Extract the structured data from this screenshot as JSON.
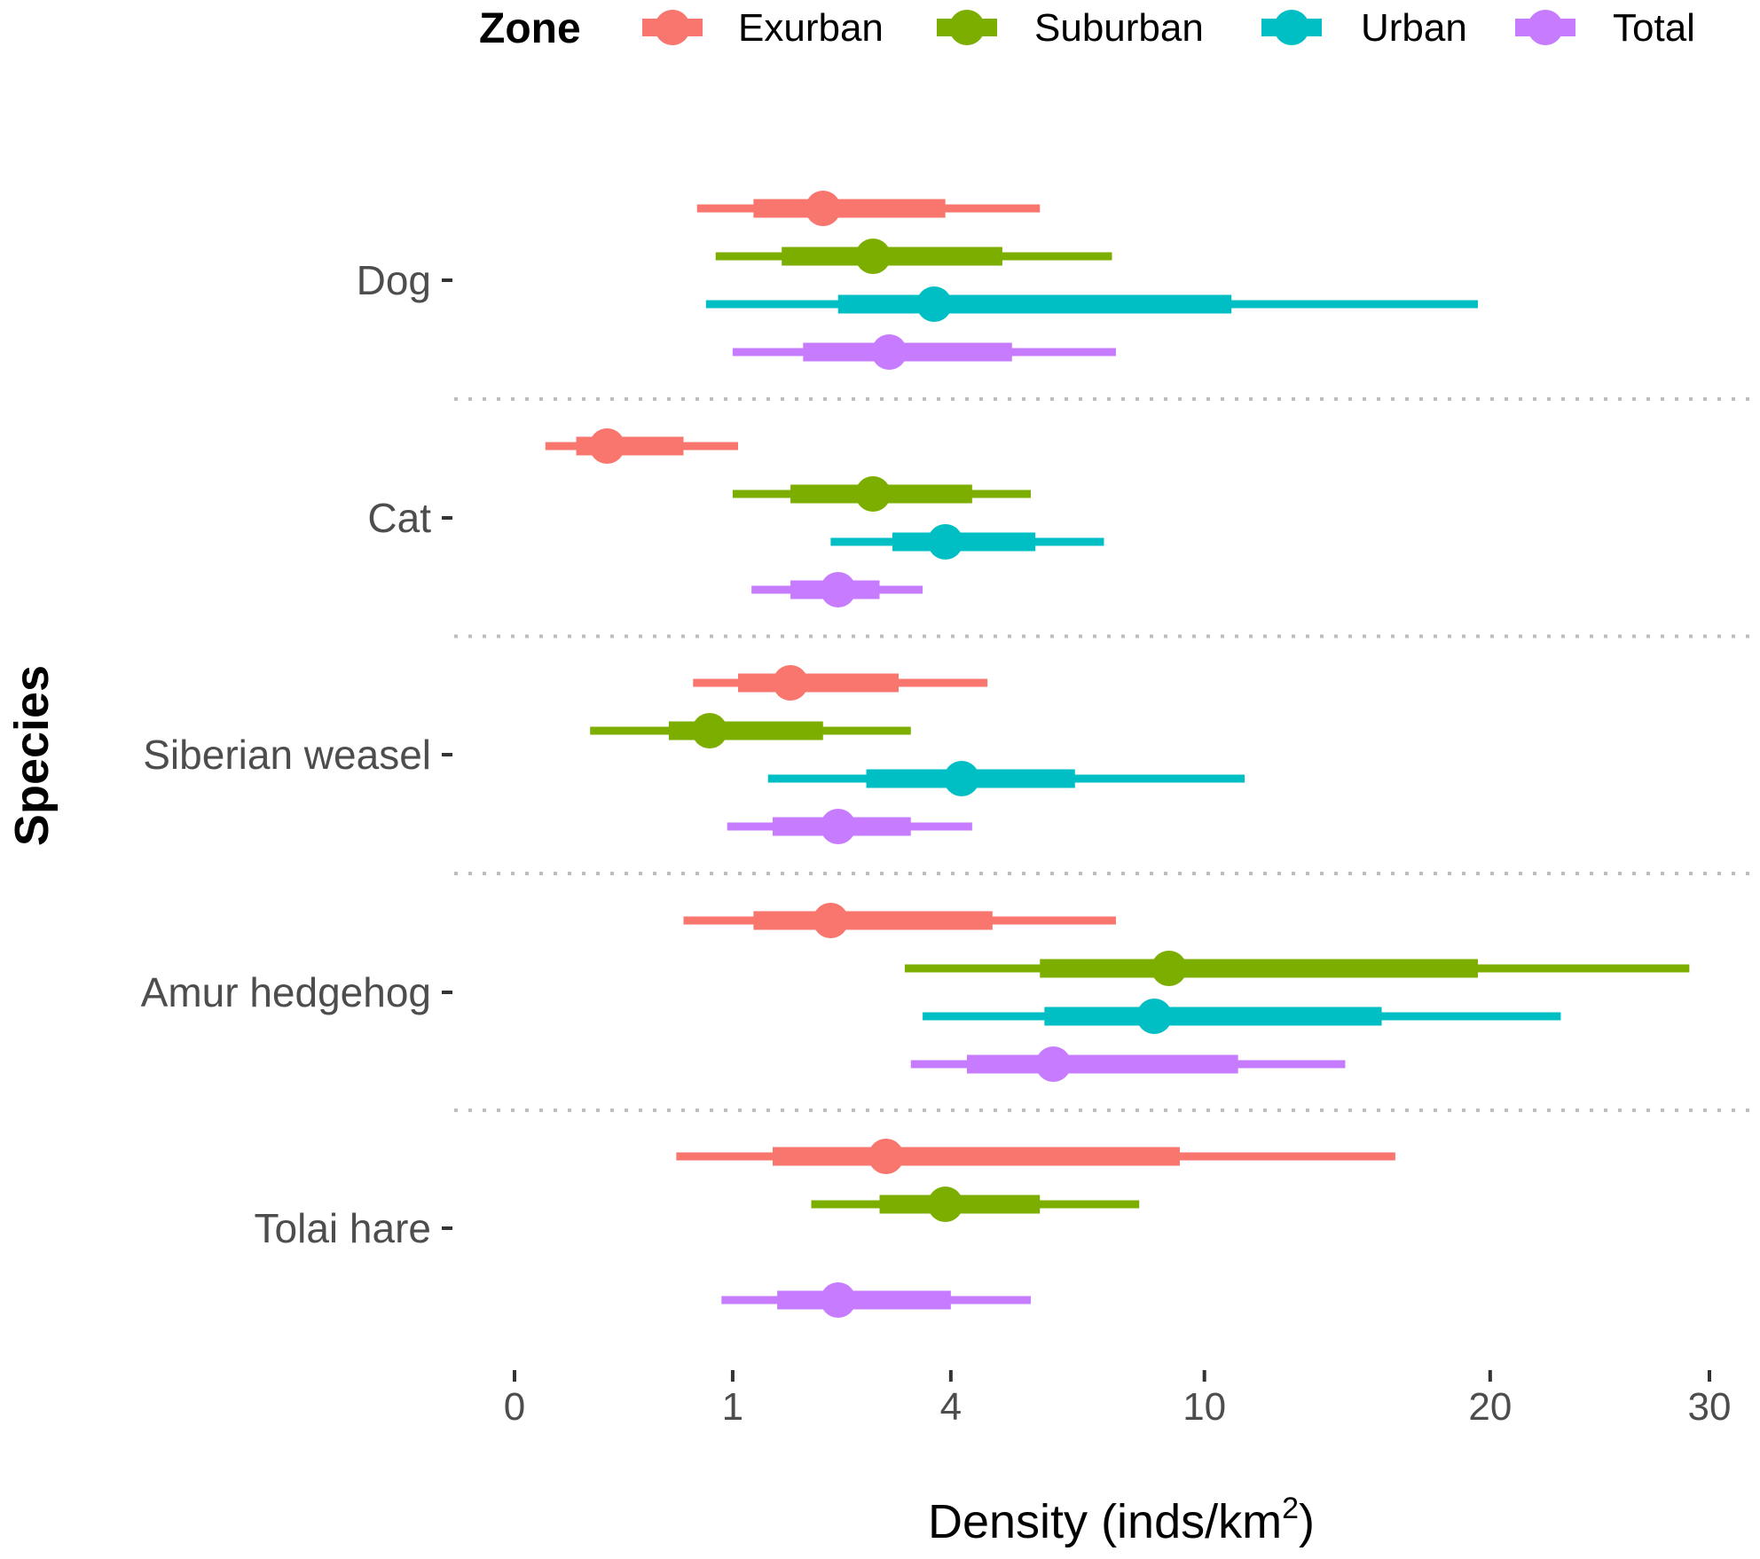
{
  "chart_data": {
    "type": "interval",
    "xlabel": "Density (inds/km",
    "xlabel_sup": "2",
    "xlabel_close": ")",
    "ylabel": "Species",
    "x_scale": "sqrt",
    "xlim": [
      0,
      30
    ],
    "x_ticks": [
      0,
      1,
      4,
      10,
      20,
      30
    ],
    "x_tick_labels": [
      "0",
      "1",
      "4",
      "10",
      "20",
      "30"
    ],
    "grid": "dotted separators between species",
    "legend": {
      "title": "Zone",
      "position": "top",
      "entries": [
        {
          "name": "Exurban",
          "color": "#F8766D"
        },
        {
          "name": "Suburban",
          "color": "#7CAE00"
        },
        {
          "name": "Urban",
          "color": "#00BFC4"
        },
        {
          "name": "Total",
          "color": "#C77CFF"
        }
      ]
    },
    "categories": [
      "Dog",
      "Cat",
      "Siberian weasel",
      "Amur hedgehog",
      "Tolai hare"
    ],
    "series": [
      {
        "name": "Exurban",
        "color": "#F8766D",
        "points": [
          {
            "category": "Dog",
            "estimate": 2.0,
            "inner": [
              1.2,
              3.9
            ],
            "outer": [
              0.7,
              5.8
            ]
          },
          {
            "category": "Cat",
            "estimate": 0.18,
            "inner": [
              0.08,
              0.6
            ],
            "outer": [
              0.02,
              1.05
            ]
          },
          {
            "category": "Siberian weasel",
            "estimate": 1.6,
            "inner": [
              1.05,
              3.1
            ],
            "outer": [
              0.67,
              4.7
            ]
          },
          {
            "category": "Amur hedgehog",
            "estimate": 2.1,
            "inner": [
              1.2,
              4.8
            ],
            "outer": [
              0.6,
              7.6
            ]
          },
          {
            "category": "Tolai hare",
            "estimate": 2.9,
            "inner": [
              1.4,
              9.3
            ],
            "outer": [
              0.55,
              16.3
            ]
          }
        ]
      },
      {
        "name": "Suburban",
        "color": "#7CAE00",
        "points": [
          {
            "category": "Dog",
            "estimate": 2.7,
            "inner": [
              1.5,
              5.0
            ],
            "outer": [
              0.85,
              7.5
            ]
          },
          {
            "category": "Cat",
            "estimate": 2.7,
            "inner": [
              1.6,
              4.4
            ],
            "outer": [
              1.0,
              5.6
            ]
          },
          {
            "category": "Siberian weasel",
            "estimate": 0.8,
            "inner": [
              0.5,
              2.0
            ],
            "outer": [
              0.12,
              3.3
            ]
          },
          {
            "category": "Amur hedgehog",
            "estimate": 9.0,
            "inner": [
              5.8,
              19.5
            ],
            "outer": [
              3.2,
              29.0
            ]
          },
          {
            "category": "Tolai hare",
            "estimate": 3.9,
            "inner": [
              2.8,
              5.8
            ],
            "outer": [
              1.85,
              8.2
            ]
          }
        ]
      },
      {
        "name": "Urban",
        "color": "#00BFC4",
        "points": [
          {
            "category": "Dog",
            "estimate": 3.7,
            "inner": [
              2.2,
              10.8
            ],
            "outer": [
              0.77,
              19.5
            ]
          },
          {
            "category": "Cat",
            "estimate": 3.9,
            "inner": [
              3.0,
              5.7
            ],
            "outer": [
              2.1,
              7.3
            ]
          },
          {
            "category": "Siberian weasel",
            "estimate": 4.2,
            "inner": [
              2.6,
              6.6
            ],
            "outer": [
              1.35,
              11.2
            ]
          },
          {
            "category": "Amur hedgehog",
            "estimate": 8.6,
            "inner": [
              5.9,
              15.8
            ],
            "outer": [
              3.5,
              23.0
            ]
          }
        ]
      },
      {
        "name": "Total",
        "color": "#C77CFF",
        "points": [
          {
            "category": "Dog",
            "estimate": 2.95,
            "inner": [
              1.75,
              5.2
            ],
            "outer": [
              1.0,
              7.6
            ]
          },
          {
            "category": "Cat",
            "estimate": 2.2,
            "inner": [
              1.6,
              2.8
            ],
            "outer": [
              1.18,
              3.5
            ]
          },
          {
            "category": "Siberian weasel",
            "estimate": 2.2,
            "inner": [
              1.4,
              3.3
            ],
            "outer": [
              0.95,
              4.4
            ]
          },
          {
            "category": "Amur hedgehog",
            "estimate": 6.1,
            "inner": [
              4.3,
              11.0
            ],
            "outer": [
              3.3,
              14.5
            ]
          },
          {
            "category": "Tolai hare",
            "estimate": 2.2,
            "inner": [
              1.45,
              4.0
            ],
            "outer": [
              0.9,
              5.6
            ]
          }
        ]
      }
    ]
  }
}
